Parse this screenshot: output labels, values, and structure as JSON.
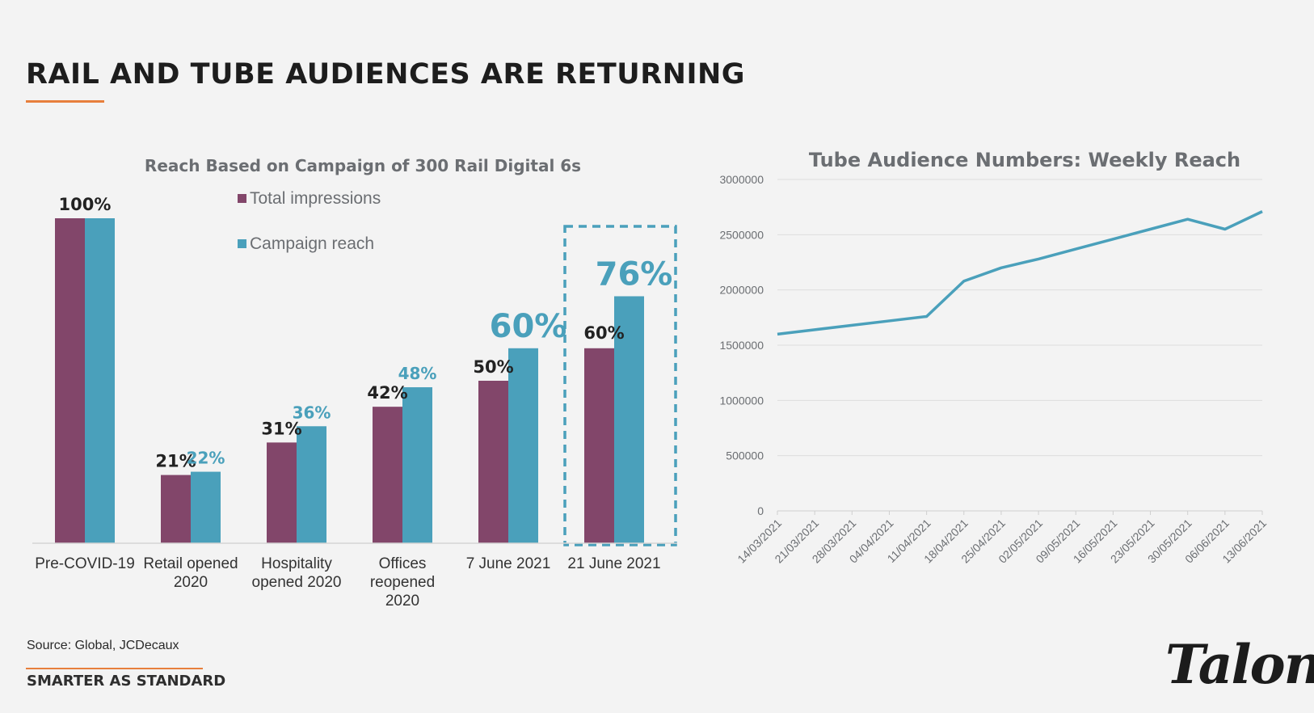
{
  "page": {
    "title": "RAIL AND TUBE AUDIENCES ARE RETURNING",
    "source": "Source: Global, JCDecaux",
    "tagline": "SMARTER AS STANDARD",
    "logo_text": "Talon",
    "accent_color": "#e77f3c"
  },
  "chart_data": [
    {
      "type": "bar",
      "title": "Reach Based on Campaign of 300 Rail Digital 6s",
      "categories": [
        [
          "Pre-COVID-19"
        ],
        [
          "Retail opened",
          "2020"
        ],
        [
          "Hospitality",
          "opened 2020"
        ],
        [
          "Offices",
          "reopened",
          "2020"
        ],
        [
          "7 June 2021"
        ],
        [
          "21 June 2021"
        ]
      ],
      "series": [
        {
          "name": "Total impressions",
          "color": "#82466a",
          "values": [
            100,
            21,
            31,
            42,
            50,
            60
          ]
        },
        {
          "name": "Campaign reach",
          "color": "#4aa0bb",
          "values": [
            100,
            22,
            36,
            48,
            60,
            76
          ]
        }
      ],
      "data_labels": [
        {
          "text": "100%",
          "category": 0,
          "series": "combined",
          "style": "dark"
        },
        {
          "text": "21%",
          "category": 1,
          "series": 0,
          "style": "dark"
        },
        {
          "text": "22%",
          "category": 1,
          "series": 1,
          "style": "teal"
        },
        {
          "text": "31%",
          "category": 2,
          "series": 0,
          "style": "dark"
        },
        {
          "text": "36%",
          "category": 2,
          "series": 1,
          "style": "teal"
        },
        {
          "text": "42%",
          "category": 3,
          "series": 0,
          "style": "dark"
        },
        {
          "text": "48%",
          "category": 3,
          "series": 1,
          "style": "teal"
        },
        {
          "text": "50%",
          "category": 4,
          "series": 0,
          "style": "dark"
        },
        {
          "text": "60%",
          "category": 4,
          "series": 1,
          "style": "teal-large"
        },
        {
          "text": "60%",
          "category": 5,
          "series": 0,
          "style": "dark"
        },
        {
          "text": "76%",
          "category": 5,
          "series": 1,
          "style": "teal-large"
        }
      ],
      "ylim": [
        0,
        100
      ],
      "legend_placement": "top",
      "highlight_category": 5,
      "grid": false
    },
    {
      "type": "line",
      "title": "Tube Audience Numbers: Weekly Reach",
      "x": [
        "14/03/2021",
        "21/03/2021",
        "28/03/2021",
        "04/04/2021",
        "11/04/2021",
        "18/04/2021",
        "25/04/2021",
        "02/05/2021",
        "09/05/2021",
        "16/05/2021",
        "23/05/2021",
        "30/05/2021",
        "06/06/2021",
        "13/06/2021"
      ],
      "series": [
        {
          "color": "#4aa0bb",
          "values": [
            1600000,
            1640000,
            1680000,
            1720000,
            1760000,
            2080000,
            2200000,
            2280000,
            2370000,
            2460000,
            2550000,
            2640000,
            2550000,
            2710000
          ]
        }
      ],
      "yticks": [
        "0",
        "500000",
        "1000000",
        "1500000",
        "2000000",
        "2500000",
        "3000000"
      ],
      "ylim": [
        0,
        3000000
      ],
      "grid": true,
      "xlabel": "",
      "ylabel": ""
    }
  ]
}
